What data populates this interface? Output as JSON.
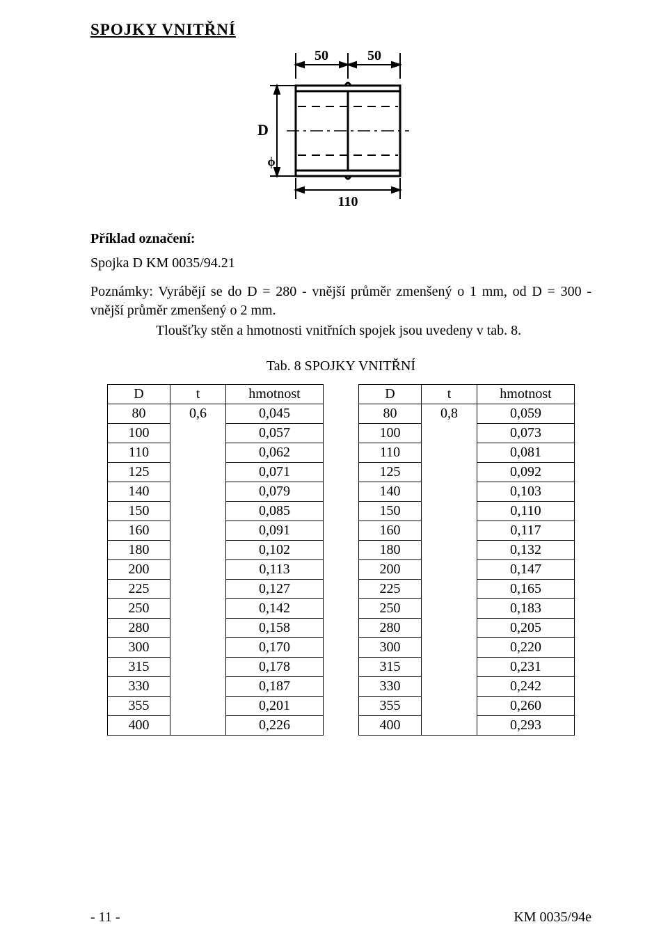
{
  "title": "SPOJKY  VNITŘNÍ",
  "figure": {
    "dim_top_left": "50",
    "dim_top_right": "50",
    "diameter_label_left": "D",
    "phi_label": "ϕ",
    "dim_bottom": "110"
  },
  "example": {
    "heading": "Příklad označení:",
    "body": "Spojka  D  KM  0035/94.21"
  },
  "notes": {
    "label": "Poznámky:",
    "line1": "Vyrábějí  se  do D = 280 -  vnější  průměr  zmenšený o 1 mm,  od  D = 300  -  vnější  průměr zmenšený o  2 mm.",
    "line2": "Tloušťky stěn a hmotnosti vnitřních spojek jsou uvedeny v tab. 8."
  },
  "table": {
    "caption": "Tab. 8  SPOJKY  VNITŘNÍ",
    "headers": {
      "D": "D",
      "t": "t",
      "h": "hmotnost"
    },
    "left": {
      "t": "0,6",
      "rows": [
        {
          "D": "80",
          "h": "0,045"
        },
        {
          "D": "100",
          "h": "0,057"
        },
        {
          "D": "110",
          "h": "0,062"
        },
        {
          "D": "125",
          "h": "0,071"
        },
        {
          "D": "140",
          "h": "0,079"
        },
        {
          "D": "150",
          "h": "0,085"
        },
        {
          "D": "160",
          "h": "0,091"
        },
        {
          "D": "180",
          "h": "0,102"
        },
        {
          "D": "200",
          "h": "0,113"
        },
        {
          "D": "225",
          "h": "0,127"
        },
        {
          "D": "250",
          "h": "0,142"
        },
        {
          "D": "280",
          "h": "0,158"
        },
        {
          "D": "300",
          "h": "0,170"
        },
        {
          "D": "315",
          "h": "0,178"
        },
        {
          "D": "330",
          "h": "0,187"
        },
        {
          "D": "355",
          "h": "0,201"
        },
        {
          "D": "400",
          "h": "0,226"
        }
      ]
    },
    "right": {
      "t": "0,8",
      "rows": [
        {
          "D": "80",
          "h": "0,059"
        },
        {
          "D": "100",
          "h": "0,073"
        },
        {
          "D": "110",
          "h": "0,081"
        },
        {
          "D": "125",
          "h": "0,092"
        },
        {
          "D": "140",
          "h": "0,103"
        },
        {
          "D": "150",
          "h": "0,110"
        },
        {
          "D": "160",
          "h": "0,117"
        },
        {
          "D": "180",
          "h": "0,132"
        },
        {
          "D": "200",
          "h": "0,147"
        },
        {
          "D": "225",
          "h": "0,165"
        },
        {
          "D": "250",
          "h": "0,183"
        },
        {
          "D": "280",
          "h": "0,205"
        },
        {
          "D": "300",
          "h": "0,220"
        },
        {
          "D": "315",
          "h": "0,231"
        },
        {
          "D": "330",
          "h": "0,242"
        },
        {
          "D": "355",
          "h": "0,260"
        },
        {
          "D": "400",
          "h": "0,293"
        }
      ]
    }
  },
  "footer": {
    "page": "- 11 -",
    "doc": "KM 0035/94e"
  },
  "style": {
    "text_color": "#000000",
    "bg_color": "#ffffff",
    "border_color": "#000000",
    "title_fontsize": 23,
    "body_fontsize": 20
  }
}
